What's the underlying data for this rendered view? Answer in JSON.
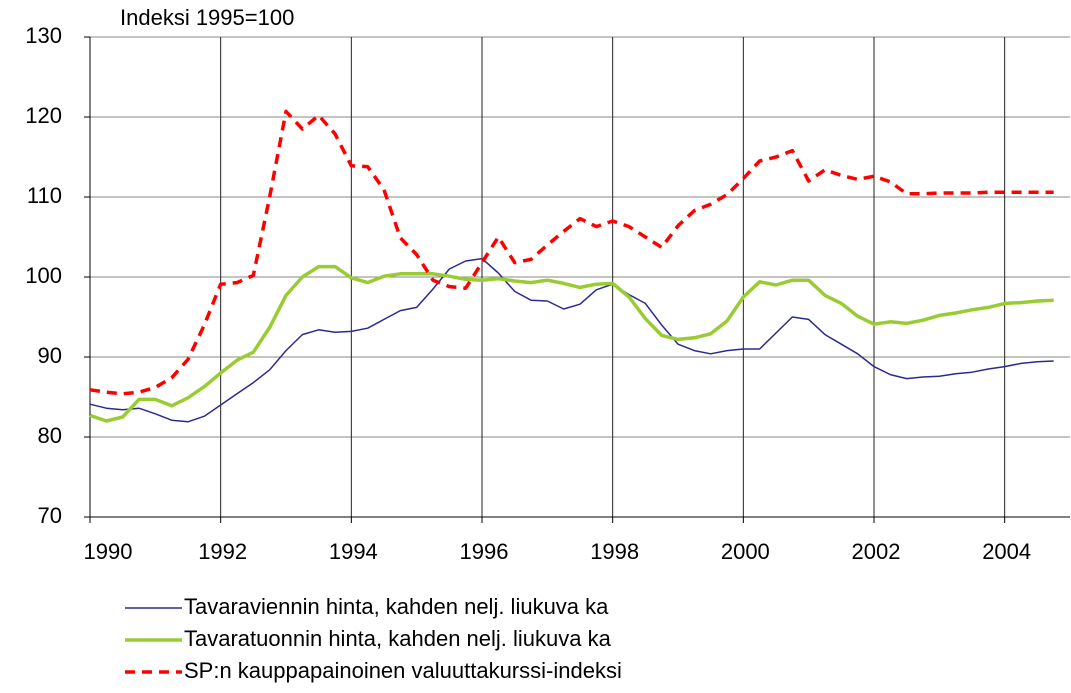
{
  "chart_data": {
    "type": "line",
    "title": "Indeksi 1995=100",
    "x": [
      1990,
      1990.25,
      1990.5,
      1990.75,
      1991,
      1991.25,
      1991.5,
      1991.75,
      1992,
      1992.25,
      1992.5,
      1992.75,
      1993,
      1993.25,
      1993.5,
      1993.75,
      1994,
      1994.25,
      1994.5,
      1994.75,
      1995,
      1995.25,
      1995.5,
      1995.75,
      1996,
      1996.25,
      1996.5,
      1996.75,
      1997,
      1997.25,
      1997.5,
      1997.75,
      1998,
      1998.25,
      1998.5,
      1998.75,
      1999,
      1999.25,
      1999.5,
      1999.75,
      2000,
      2000.25,
      2000.5,
      2000.75,
      2001,
      2001.25,
      2001.5,
      2001.75,
      2002,
      2002.25,
      2002.5,
      2002.75,
      2003,
      2003.25,
      2003.5,
      2003.75,
      2004,
      2004.25,
      2004.5,
      2004.75
    ],
    "series": [
      {
        "name": "Tavaraviennin hinta, kahden nelj. liukuva ka",
        "color": "#2b2b8f",
        "line_style": "solid",
        "line_width": 1.5,
        "values": [
          84.1,
          83.6,
          83.4,
          83.6,
          82.9,
          82.1,
          81.9,
          82.6,
          84.0,
          85.4,
          86.8,
          88.4,
          90.8,
          92.8,
          93.4,
          93.1,
          93.2,
          93.6,
          94.7,
          95.8,
          96.2,
          98.5,
          101.0,
          102.0,
          102.3,
          100.5,
          98.2,
          97.1,
          97.0,
          96.0,
          96.6,
          98.4,
          99.1,
          97.8,
          96.7,
          94.0,
          91.6,
          90.8,
          90.4,
          90.8,
          91.0,
          91.0,
          93.0,
          95.0,
          94.7,
          92.8,
          91.6,
          90.4,
          88.8,
          87.8,
          87.3,
          87.5,
          87.6,
          87.9,
          88.1,
          88.5,
          88.8,
          89.2,
          89.4,
          89.5
        ]
      },
      {
        "name": "Tavaratuonnin hinta, kahden nelj. liukuva ka",
        "color": "#99cc33",
        "line_style": "solid",
        "line_width": 3.5,
        "values": [
          82.7,
          82.0,
          82.5,
          84.7,
          84.7,
          83.9,
          84.9,
          86.3,
          88.0,
          89.6,
          90.6,
          93.7,
          97.7,
          100.0,
          101.3,
          101.3,
          99.9,
          99.3,
          100.1,
          100.4,
          100.4,
          100.4,
          100.1,
          99.7,
          99.6,
          99.8,
          99.5,
          99.3,
          99.6,
          99.2,
          98.7,
          99.1,
          99.2,
          97.5,
          94.8,
          92.7,
          92.2,
          92.4,
          92.9,
          94.5,
          97.5,
          99.4,
          99.0,
          99.6,
          99.6,
          97.7,
          96.7,
          95.1,
          94.1,
          94.4,
          94.2,
          94.6,
          95.2,
          95.5,
          95.9,
          96.2,
          96.7,
          96.8,
          97.0,
          97.1
        ]
      },
      {
        "name": "SP:n kauppapainoinen valuuttakurssi-indeksi",
        "color": "#ff0000",
        "line_style": "dashed",
        "line_width": 3.5,
        "values": [
          85.9,
          85.6,
          85.4,
          85.6,
          86.2,
          87.4,
          89.7,
          94.0,
          99.1,
          99.3,
          100.2,
          110.0,
          120.7,
          118.5,
          120.2,
          117.9,
          113.9,
          113.8,
          110.9,
          104.9,
          102.8,
          99.6,
          98.8,
          98.6,
          101.8,
          105.0,
          101.8,
          102.2,
          104.0,
          105.7,
          107.3,
          106.3,
          107.0,
          106.3,
          105.0,
          103.7,
          106.4,
          108.3,
          109.1,
          110.3,
          112.3,
          114.5,
          115.0,
          115.8,
          112.0,
          113.4,
          112.7,
          112.2,
          112.6,
          111.9,
          110.4,
          110.4,
          110.5,
          110.5,
          110.5,
          110.6,
          110.6,
          110.6,
          110.6,
          110.6
        ]
      }
    ],
    "xlim": [
      1990,
      2005
    ],
    "xticks": [
      1990,
      1992,
      1994,
      1996,
      1998,
      2000,
      2002,
      2004
    ],
    "ylim": [
      70,
      130
    ],
    "yticks": [
      70,
      80,
      90,
      100,
      110,
      120,
      130
    ],
    "grid": true,
    "legend": "bottom"
  }
}
